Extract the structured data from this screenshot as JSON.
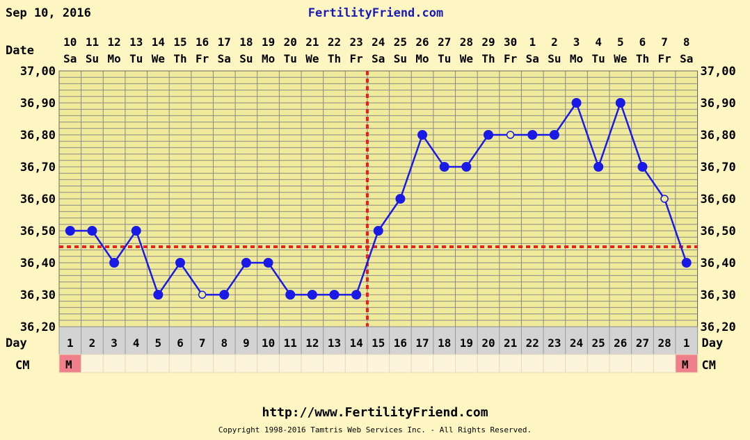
{
  "header": {
    "date": "Sep 10, 2016",
    "site": "FertilityFriend.com"
  },
  "labels": {
    "date_row": "Date",
    "day_row": "Day",
    "cm_row": "CM"
  },
  "footer": {
    "url": "http://www.FertilityFriend.com",
    "copyright": "Copyright 1998-2016 Tamtris Web Services Inc. - All Rights Reserved."
  },
  "colors": {
    "background": "#fdf6c3",
    "plot_area": "#f0ea9b",
    "grid": "#8a8a8a",
    "series": "#1a1ae6",
    "coverline": "#e82020",
    "link_text": "#1a1ab4",
    "day_row_bg": "#d3d3d3",
    "cm_cell_bg": "#fdf4dc",
    "cm_mark_bg": "#f07f8c"
  },
  "chart_data": {
    "type": "line",
    "title": "",
    "ylim": [
      36.2,
      37.0
    ],
    "y_ticks": [
      "36,20",
      "36,30",
      "36,40",
      "36,50",
      "36,60",
      "36,70",
      "36,80",
      "36,90",
      "37,00"
    ],
    "grid": true,
    "dates": [
      "10",
      "11",
      "12",
      "13",
      "14",
      "15",
      "16",
      "17",
      "18",
      "19",
      "20",
      "21",
      "22",
      "23",
      "24",
      "25",
      "26",
      "27",
      "28",
      "29",
      "30",
      "1",
      "2",
      "3",
      "4",
      "5",
      "6",
      "7",
      "8"
    ],
    "weekdays": [
      "Sa",
      "Su",
      "Mo",
      "Tu",
      "We",
      "Th",
      "Fr",
      "Sa",
      "Su",
      "Mo",
      "Tu",
      "We",
      "Th",
      "Fr",
      "Sa",
      "Su",
      "Mo",
      "Tu",
      "We",
      "Th",
      "Fr",
      "Sa",
      "Su",
      "Mo",
      "Tu",
      "We",
      "Th",
      "Fr",
      "Sa"
    ],
    "cycle_days": [
      "1",
      "2",
      "3",
      "4",
      "5",
      "6",
      "7",
      "8",
      "9",
      "10",
      "11",
      "12",
      "13",
      "14",
      "15",
      "16",
      "17",
      "18",
      "19",
      "20",
      "21",
      "22",
      "23",
      "24",
      "25",
      "26",
      "27",
      "28",
      "1"
    ],
    "cm": [
      "M",
      "",
      "",
      "",
      "",
      "",
      "",
      "",
      "",
      "",
      "",
      "",
      "",
      "",
      "",
      "",
      "",
      "",
      "",
      "",
      "",
      "",
      "",
      "",
      "",
      "",
      "",
      "",
      "M"
    ],
    "series": [
      {
        "values": [
          36.5,
          36.5,
          36.4,
          36.5,
          36.3,
          36.4,
          36.3,
          36.3,
          36.4,
          36.4,
          36.3,
          36.3,
          36.3,
          36.3,
          36.5,
          36.6,
          36.8,
          36.7,
          36.7,
          36.8,
          36.8,
          36.8,
          36.8,
          36.9,
          36.7,
          36.9,
          36.7,
          36.6,
          36.4
        ],
        "open_points": [
          6,
          20,
          27
        ]
      }
    ],
    "coverline": 36.45,
    "ovulation_after_day_index": 13
  }
}
